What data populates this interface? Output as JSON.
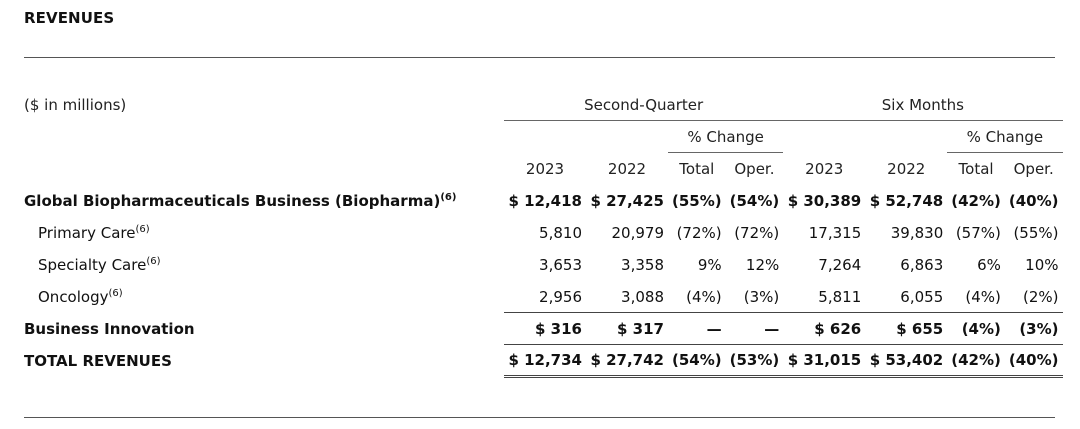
{
  "title": "REVENUES",
  "units_label": "($ in millions)",
  "groups": {
    "quarter": "Second-Quarter",
    "six_months": "Six Months"
  },
  "pct_change_label": "% Change",
  "columns": {
    "y2023": "2023",
    "y2022": "2022",
    "total": "Total",
    "oper": "Oper."
  },
  "rows": [
    {
      "label": "Global Biopharmaceuticals Business (Biopharma)",
      "footnote": "(6)",
      "bold": true,
      "q_2023": "$ 12,418",
      "q_2022": "$ 27,425",
      "q_total": "(55%)",
      "q_oper": "(54%)",
      "s_2023": "$ 30,389",
      "s_2022": "$ 52,748",
      "s_total": "(42%)",
      "s_oper": "(40%)"
    },
    {
      "label": "Primary Care",
      "footnote": "(6)",
      "bold": false,
      "q_2023": "5,810",
      "q_2022": "20,979",
      "q_total": "(72%)",
      "q_oper": "(72%)",
      "s_2023": "17,315",
      "s_2022": "39,830",
      "s_total": "(57%)",
      "s_oper": "(55%)"
    },
    {
      "label": "Specialty Care",
      "footnote": "(6)",
      "bold": false,
      "q_2023": "3,653",
      "q_2022": "3,358",
      "q_total": "9%",
      "q_oper": "12%",
      "s_2023": "7,264",
      "s_2022": "6,863",
      "s_total": "6%",
      "s_oper": "10%"
    },
    {
      "label": "Oncology",
      "footnote": "(6)",
      "bold": false,
      "q_2023": "2,956",
      "q_2022": "3,088",
      "q_total": "(4%)",
      "q_oper": "(3%)",
      "s_2023": "5,811",
      "s_2022": "6,055",
      "s_total": "(4%)",
      "s_oper": "(2%)"
    },
    {
      "label": "Business Innovation",
      "footnote": "",
      "bold": true,
      "q_2023": "$ 316",
      "q_2022": "$ 317",
      "q_total": "—",
      "q_oper": "—",
      "s_2023": "$ 626",
      "s_2022": "$ 655",
      "s_total": "(4%)",
      "s_oper": "(3%)"
    },
    {
      "label": "TOTAL REVENUES",
      "footnote": "",
      "bold": true,
      "q_2023": "$ 12,734",
      "q_2022": "$ 27,742",
      "q_total": "(54%)",
      "q_oper": "(53%)",
      "s_2023": "$ 31,015",
      "s_2022": "$ 53,402",
      "s_total": "(42%)",
      "s_oper": "(40%)"
    }
  ]
}
